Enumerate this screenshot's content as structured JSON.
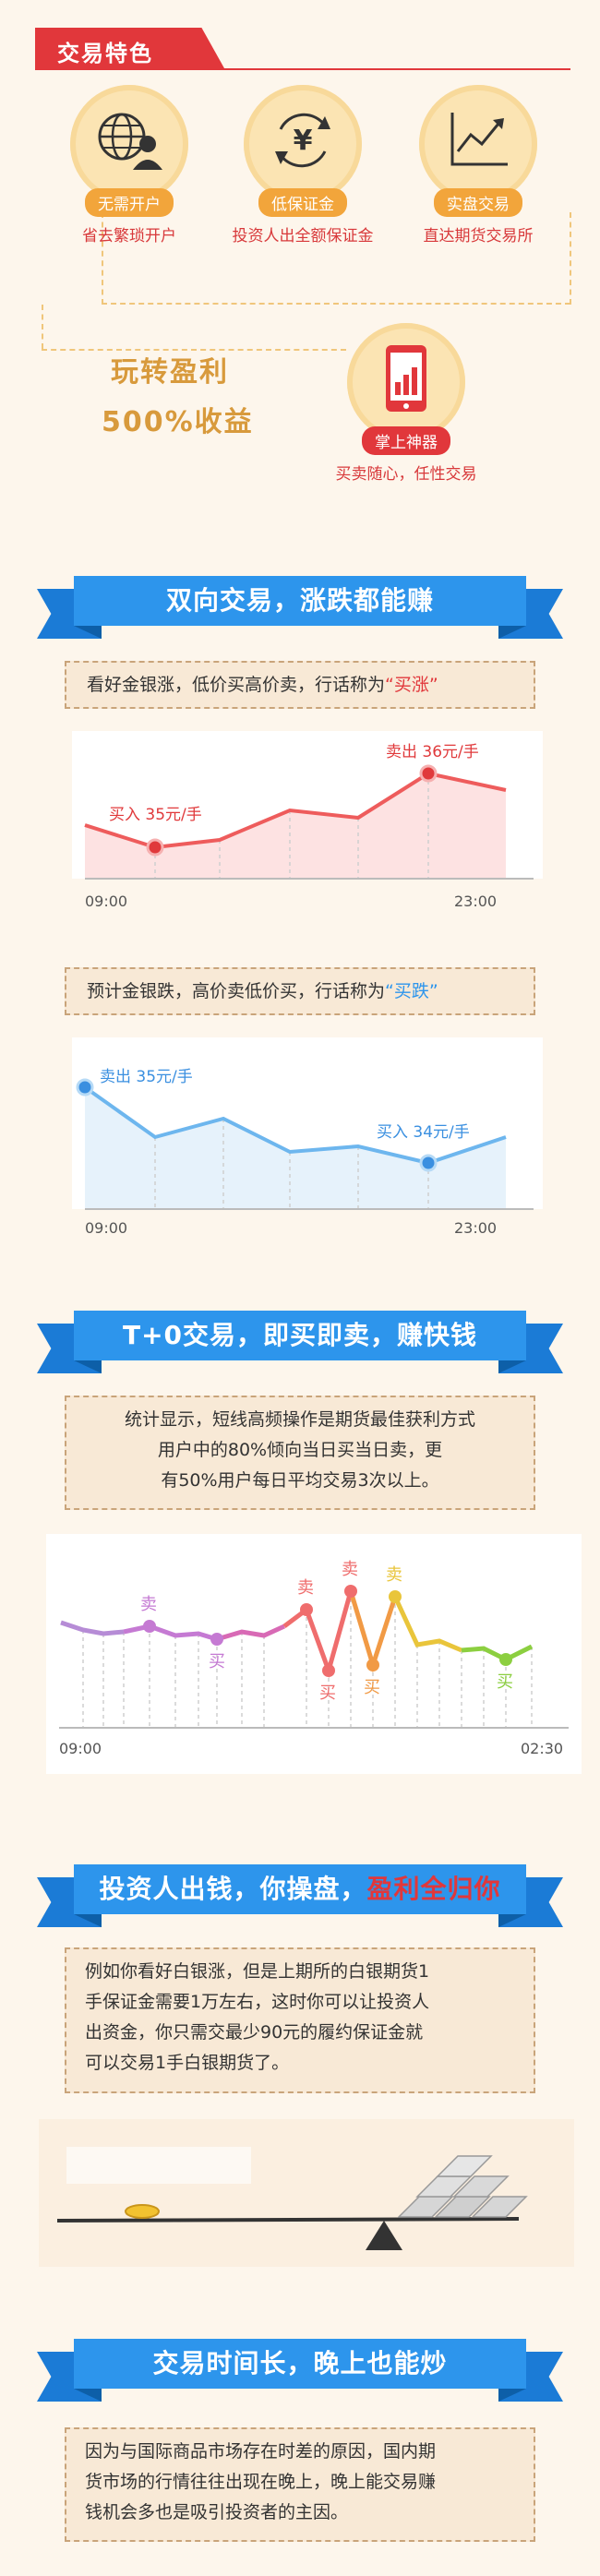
{
  "section_features": {
    "title": "交易特色",
    "features": [
      {
        "icon": "globe-user-icon",
        "pill": "无需开户",
        "desc": "省去繁琐开户"
      },
      {
        "icon": "yen-cycle-icon",
        "pill": "低保证金",
        "desc": "投资人出全额保证金"
      },
      {
        "icon": "line-chart-icon",
        "pill": "实盘交易",
        "desc": "直达期货交易所"
      }
    ],
    "slogan_line1": "玩转盈利",
    "slogan_line2": "500%收益",
    "mobile": {
      "icon": "mobile-chart-icon",
      "pill": "掌上神器",
      "desc": "买卖随心，任性交易"
    }
  },
  "section_two_way": {
    "title": "双向交易，涨跌都能赚",
    "note1_text": "看好金银涨，低价买高价卖，行话称为",
    "note1_quote": "“买涨”",
    "chart1": {
      "buy_label": "买入 35元/手",
      "sell_label": "卖出 36元/手",
      "x_start": "09:00",
      "x_end": "23:00"
    },
    "note2_text": "预计金银跌，高价卖低价买，行话称为",
    "note2_quote": "“买跌”",
    "chart2": {
      "sell_label": "卖出 35元/手",
      "buy_label": "买入 34元/手",
      "x_start": "09:00",
      "x_end": "23:00"
    }
  },
  "section_t0": {
    "title": "T+0交易，即买即卖，赚快钱",
    "note_line1": "统计显示，短线高频操作是期货最佳获利方式",
    "note_line2": "用户中的80%倾向当日买当日卖，更",
    "note_line3": "有50%用户每日平均交易3次以上。",
    "chart": {
      "sell_char": "卖",
      "buy_char": "买",
      "x_start": "09:00",
      "x_end": "02:30"
    }
  },
  "section_investor": {
    "title_main": "投资人出钱，你操盘，",
    "title_hl": "盈利全归你",
    "note_line1": "例如你看好白银涨，但是上期所的白银期货1",
    "note_line2": "手保证金需要1万左右，这时你可以让投资人",
    "note_line3": "出资金，你只需交最少90元的履约保证金就",
    "note_line4": "可以交易1手白银期货了。"
  },
  "section_hours": {
    "title": "交易时间长，晚上也能炒",
    "note_line1": "因为与国际商品市场存在时差的原因，国内期",
    "note_line2": "货市场的行情往往出现在晚上，晚上能交易赚",
    "note_line3": "钱机会多也是吸引投资者的主因。"
  }
}
